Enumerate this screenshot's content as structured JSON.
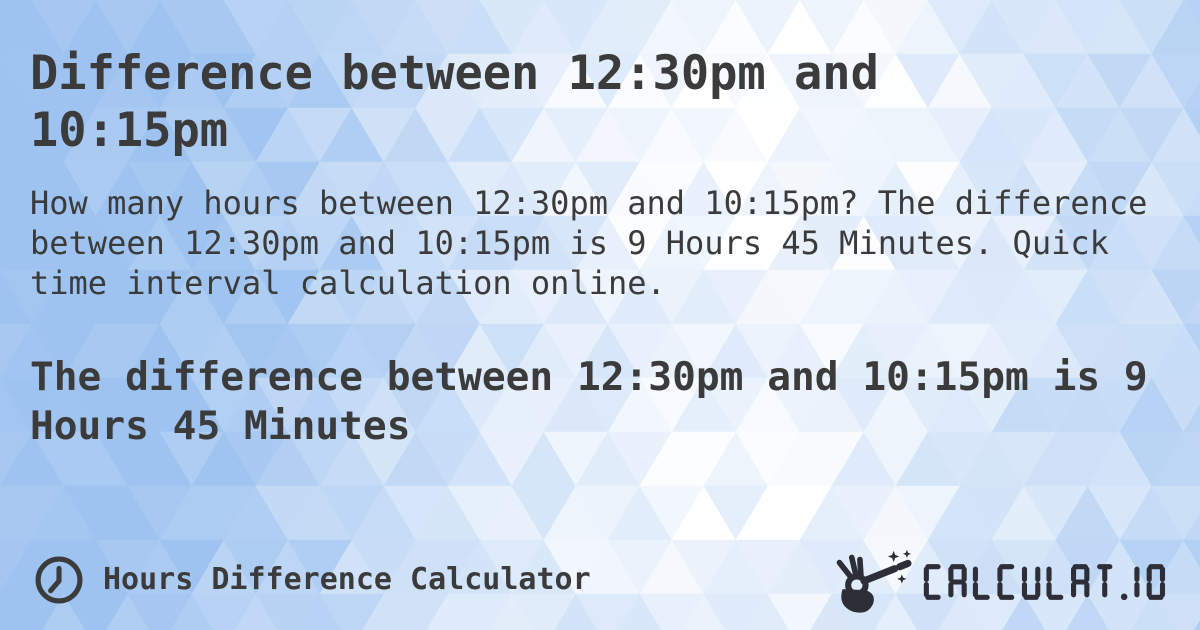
{
  "card": {
    "title": "Difference between 12:30pm and 10:15pm",
    "description": "How many hours between 12:30pm and 10:15pm? The difference between 12:30pm and 10:15pm is 9 Hours 45 Minutes. Quick time interval calculation online.",
    "result_heading": "The difference between 12:30pm and 10:15pm is 9 Hours 45 Minutes"
  },
  "footer": {
    "calculator_name": "Hours Difference Calculator",
    "brand": "CALCULAT.IO",
    "icons": {
      "left": "clock-icon",
      "right": "hand-magic-wand-icon"
    }
  },
  "colors": {
    "text": "#3b3b3b",
    "logo": "#2e2e38",
    "bg_blue": "#9ec3f0",
    "bg_white": "#ffffff"
  }
}
